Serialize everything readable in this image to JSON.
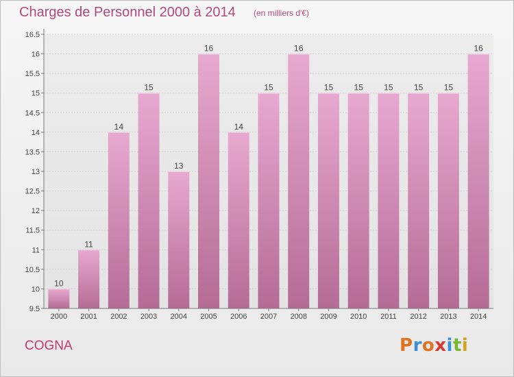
{
  "header": {
    "title": "Charges de Personnel 2000 à 2014",
    "subtitle": "(en milliers d'€)"
  },
  "footer": {
    "commune": "COGNA",
    "logo_text": "Proxiti",
    "logo_colors": [
      "#e0731f",
      "#3b8fd4",
      "#e0731f",
      "#d33b2e",
      "#3b8fd4",
      "#7ab730",
      "#d4a020"
    ]
  },
  "colors": {
    "bar_top": "#e7a9cf",
    "bar_bottom": "#b46c95",
    "title": "#b04a7a",
    "commune": "#c03a6e"
  },
  "chart_data": {
    "type": "bar",
    "title": "Charges de Personnel 2000 à 2014",
    "subtitle": "(en milliers d'€)",
    "categories": [
      "2000",
      "2001",
      "2002",
      "2003",
      "2004",
      "2005",
      "2006",
      "2007",
      "2008",
      "2009",
      "2010",
      "2011",
      "2012",
      "2013",
      "2014"
    ],
    "values": [
      10,
      11,
      14,
      15,
      13,
      16,
      14,
      15,
      16,
      15,
      15,
      15,
      15,
      15,
      16
    ],
    "ylim": [
      9.5,
      16.5
    ],
    "yticks": [
      "9.5",
      "10",
      "10.5",
      "11",
      "11.5",
      "12",
      "12.5",
      "13",
      "13.5",
      "14",
      "14.5",
      "15",
      "15.5",
      "16",
      "16.5"
    ],
    "xlabel": "",
    "ylabel": "",
    "grid": "horizontal"
  }
}
